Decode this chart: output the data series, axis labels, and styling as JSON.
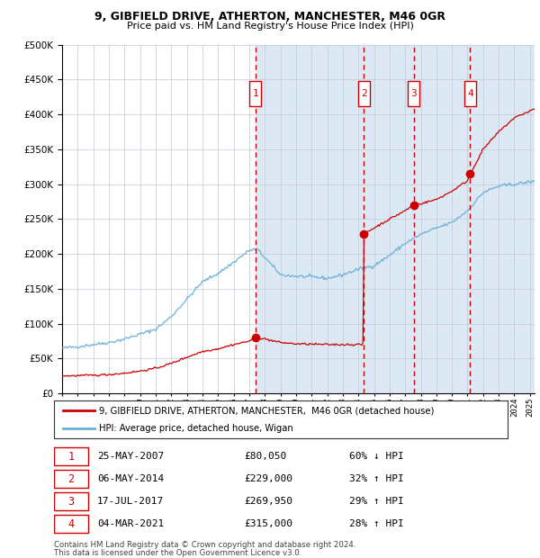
{
  "title1": "9, GIBFIELD DRIVE, ATHERTON, MANCHESTER, M46 0GR",
  "title2": "Price paid vs. HM Land Registry's House Price Index (HPI)",
  "legend_line1": "9, GIBFIELD DRIVE, ATHERTON, MANCHESTER,  M46 0GR (detached house)",
  "legend_line2": "HPI: Average price, detached house, Wigan",
  "footer1": "Contains HM Land Registry data © Crown copyright and database right 2024.",
  "footer2": "This data is licensed under the Open Government Licence v3.0.",
  "transactions": [
    {
      "num": 1,
      "date": "25-MAY-2007",
      "price": 80050,
      "price_str": "£80,050",
      "pct": "60%",
      "dir": "↓",
      "year": 2007.39
    },
    {
      "num": 2,
      "date": "06-MAY-2014",
      "price": 229000,
      "price_str": "£229,000",
      "pct": "32%",
      "dir": "↑",
      "year": 2014.34
    },
    {
      "num": 3,
      "date": "17-JUL-2017",
      "price": 269950,
      "price_str": "£269,950",
      "pct": "29%",
      "dir": "↑",
      "year": 2017.54
    },
    {
      "num": 4,
      "date": "04-MAR-2021",
      "price": 315000,
      "price_str": "£315,000",
      "pct": "28%",
      "dir": "↑",
      "year": 2021.17
    }
  ],
  "hpi_color": "#6baed6",
  "price_color": "#cc0000",
  "bg_color": "#dce9f5",
  "grid_color": "#c0c8d8",
  "ylim": [
    0,
    500000
  ],
  "xlim_start": 1995.0,
  "xlim_end": 2025.3,
  "box_color": "#cc0000"
}
